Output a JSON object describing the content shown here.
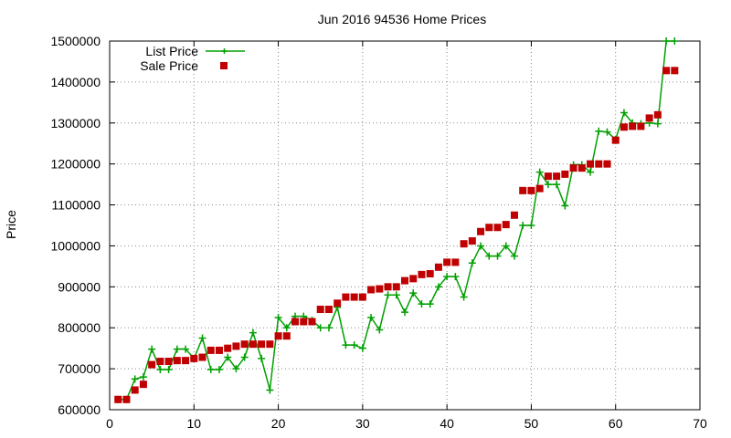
{
  "chart_data": {
    "type": "line",
    "title": "Jun 2016 94536 Home Prices",
    "xlabel": "",
    "ylabel": "Price",
    "xlim": [
      0,
      70
    ],
    "ylim": [
      600000,
      1500000
    ],
    "xticks": [
      0,
      10,
      20,
      30,
      40,
      50,
      60,
      70
    ],
    "yticks": [
      600000,
      700000,
      800000,
      900000,
      1000000,
      1100000,
      1200000,
      1300000,
      1400000,
      1500000
    ],
    "grid": true,
    "legend": "top-left",
    "series": [
      {
        "name": "List Price",
        "style": "line-points",
        "marker": "plus",
        "color": "#00a000",
        "x": [
          1,
          2,
          3,
          4,
          5,
          6,
          7,
          8,
          9,
          10,
          11,
          12,
          13,
          14,
          15,
          16,
          17,
          18,
          19,
          20,
          21,
          22,
          23,
          24,
          25,
          26,
          27,
          28,
          29,
          30,
          31,
          32,
          33,
          34,
          35,
          36,
          37,
          38,
          39,
          40,
          41,
          42,
          43,
          44,
          45,
          46,
          47,
          48,
          49,
          50,
          51,
          52,
          53,
          54,
          55,
          56,
          57,
          58,
          59,
          60,
          61,
          62,
          63,
          64,
          65,
          66,
          67
        ],
        "y": [
          625000,
          625000,
          675000,
          680000,
          748000,
          698000,
          698000,
          748000,
          748000,
          725000,
          775000,
          698000,
          698000,
          728000,
          700000,
          728000,
          788000,
          725000,
          648000,
          825000,
          800000,
          828000,
          828000,
          818000,
          800000,
          800000,
          850000,
          758000,
          758000,
          750000,
          825000,
          795000,
          880000,
          880000,
          838000,
          885000,
          858000,
          858000,
          900000,
          925000,
          925000,
          875000,
          958000,
          1000000,
          975000,
          975000,
          1000000,
          975000,
          1050000,
          1050000,
          1180000,
          1150000,
          1150000,
          1098000,
          1198000,
          1198000,
          1180000,
          1280000,
          1278000,
          1260000,
          1325000,
          1300000,
          1298000,
          1300000,
          1298000,
          1500000,
          1500000
        ]
      },
      {
        "name": "Sale Price",
        "style": "points",
        "marker": "square",
        "color": "#c00000",
        "x": [
          1,
          2,
          3,
          4,
          5,
          6,
          7,
          8,
          9,
          10,
          11,
          12,
          13,
          14,
          15,
          16,
          17,
          18,
          19,
          20,
          21,
          22,
          23,
          24,
          25,
          26,
          27,
          28,
          29,
          30,
          31,
          32,
          33,
          34,
          35,
          36,
          37,
          38,
          39,
          40,
          41,
          42,
          43,
          44,
          45,
          46,
          47,
          48,
          49,
          50,
          51,
          52,
          53,
          54,
          55,
          56,
          57,
          58,
          59,
          60,
          61,
          62,
          63,
          64,
          65,
          66,
          67
        ],
        "y": [
          625000,
          625000,
          648000,
          662000,
          710000,
          718000,
          718000,
          720000,
          720000,
          725000,
          728000,
          745000,
          745000,
          750000,
          755000,
          760000,
          760000,
          760000,
          760000,
          780000,
          780000,
          815000,
          815000,
          815000,
          845000,
          845000,
          860000,
          875000,
          875000,
          875000,
          893000,
          895000,
          900000,
          900000,
          915000,
          920000,
          930000,
          932000,
          948000,
          960000,
          960000,
          1005000,
          1012000,
          1035000,
          1045000,
          1045000,
          1052000,
          1075000,
          1135000,
          1135000,
          1140000,
          1170000,
          1170000,
          1175000,
          1190000,
          1190000,
          1200000,
          1200000,
          1200000,
          1258000,
          1290000,
          1292000,
          1292000,
          1312000,
          1320000,
          1428000,
          1428000
        ]
      }
    ]
  }
}
